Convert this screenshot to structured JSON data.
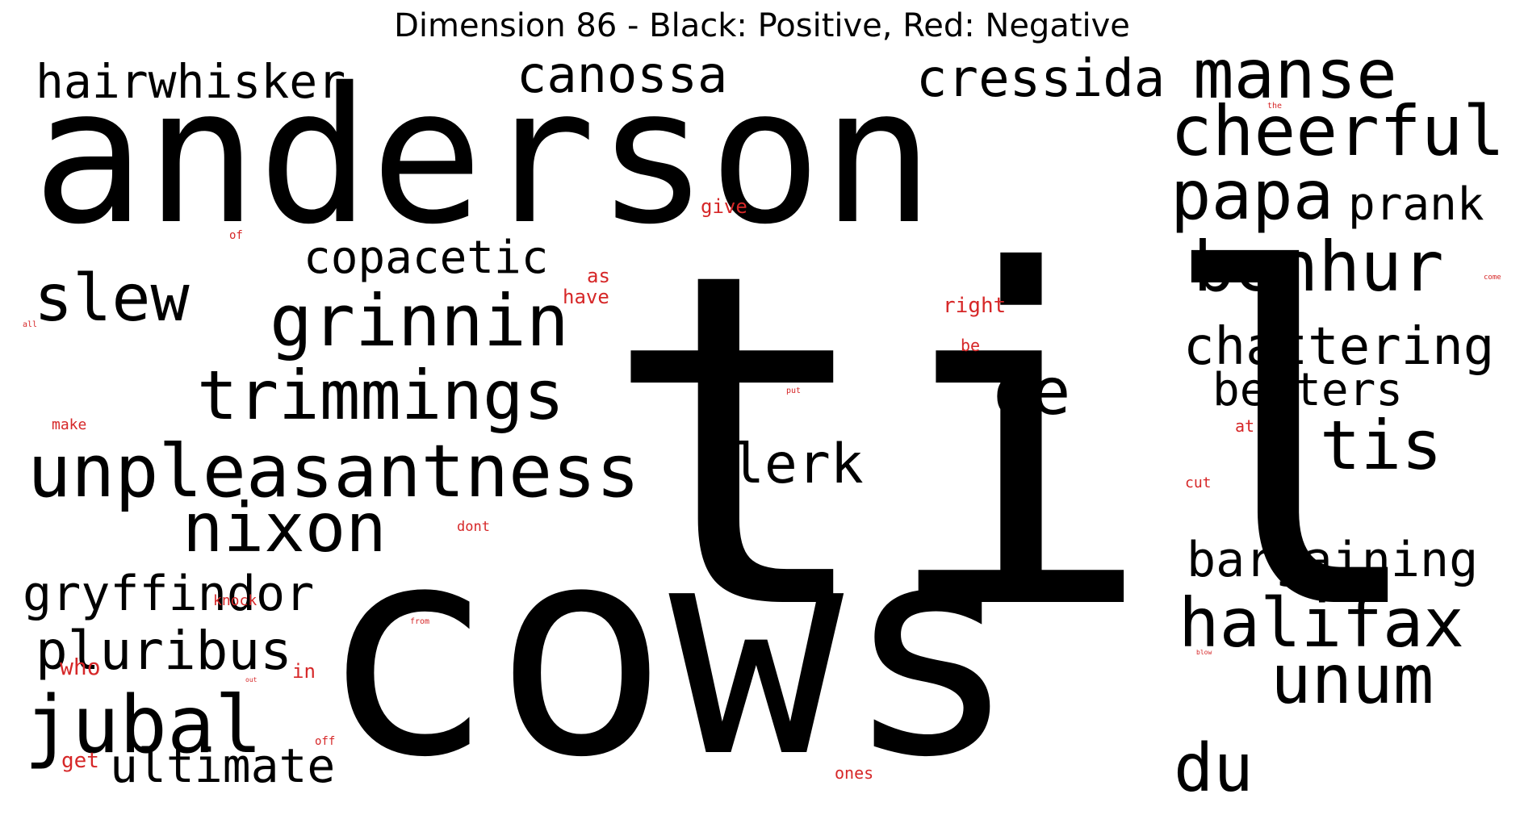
{
  "title": "Dimension 86 - Black: Positive, Red: Negative",
  "colors": {
    "positive": "#000000",
    "negative": "#d62728"
  },
  "words": [
    {
      "text": "anderson",
      "polarity": "positive"
    },
    {
      "text": "til",
      "polarity": "positive"
    },
    {
      "text": "cows",
      "polarity": "positive"
    },
    {
      "text": "hairwhisker",
      "polarity": "positive"
    },
    {
      "text": "canossa",
      "polarity": "positive"
    },
    {
      "text": "cressida",
      "polarity": "positive"
    },
    {
      "text": "manse",
      "polarity": "positive"
    },
    {
      "text": "cheerful",
      "polarity": "positive"
    },
    {
      "text": "papa",
      "polarity": "positive"
    },
    {
      "text": "prank",
      "polarity": "positive"
    },
    {
      "text": "benhur",
      "polarity": "positive"
    },
    {
      "text": "copacetic",
      "polarity": "positive"
    },
    {
      "text": "slew",
      "polarity": "positive"
    },
    {
      "text": "grinnin",
      "polarity": "positive"
    },
    {
      "text": "chattering",
      "polarity": "positive"
    },
    {
      "text": "trimmings",
      "polarity": "positive"
    },
    {
      "text": "oe",
      "polarity": "positive"
    },
    {
      "text": "betters",
      "polarity": "positive"
    },
    {
      "text": "tis",
      "polarity": "positive"
    },
    {
      "text": "unpleasantness",
      "polarity": "positive"
    },
    {
      "text": "clerk",
      "polarity": "positive"
    },
    {
      "text": "nixon",
      "polarity": "positive"
    },
    {
      "text": "bargaining",
      "polarity": "positive"
    },
    {
      "text": "gryffindor",
      "polarity": "positive"
    },
    {
      "text": "halifax",
      "polarity": "positive"
    },
    {
      "text": "pluribus",
      "polarity": "positive"
    },
    {
      "text": "unum",
      "polarity": "positive"
    },
    {
      "text": "jubal",
      "polarity": "positive"
    },
    {
      "text": "ultimate",
      "polarity": "positive"
    },
    {
      "text": "du",
      "polarity": "positive"
    },
    {
      "text": "give",
      "polarity": "negative"
    },
    {
      "text": "the",
      "polarity": "negative"
    },
    {
      "text": "of",
      "polarity": "negative"
    },
    {
      "text": "as",
      "polarity": "negative"
    },
    {
      "text": "have",
      "polarity": "negative"
    },
    {
      "text": "right",
      "polarity": "negative"
    },
    {
      "text": "come",
      "polarity": "negative"
    },
    {
      "text": "all",
      "polarity": "negative"
    },
    {
      "text": "be",
      "polarity": "negative"
    },
    {
      "text": "put",
      "polarity": "negative"
    },
    {
      "text": "make",
      "polarity": "negative"
    },
    {
      "text": "at",
      "polarity": "negative"
    },
    {
      "text": "cut",
      "polarity": "negative"
    },
    {
      "text": "dont",
      "polarity": "negative"
    },
    {
      "text": "knock",
      "polarity": "negative"
    },
    {
      "text": "from",
      "polarity": "negative"
    },
    {
      "text": "blow",
      "polarity": "negative"
    },
    {
      "text": "who",
      "polarity": "negative"
    },
    {
      "text": "in",
      "polarity": "negative"
    },
    {
      "text": "out",
      "polarity": "negative"
    },
    {
      "text": "off",
      "polarity": "negative"
    },
    {
      "text": "get",
      "polarity": "negative"
    },
    {
      "text": "ones",
      "polarity": "negative"
    }
  ]
}
